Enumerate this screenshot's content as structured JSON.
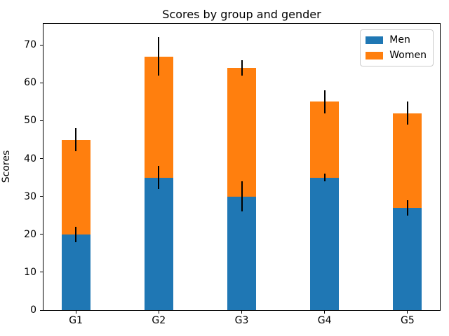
{
  "chart_data": {
    "type": "bar",
    "stacked": true,
    "title": "Scores by group and gender",
    "xlabel": "",
    "ylabel": "Scores",
    "categories": [
      "G1",
      "G2",
      "G3",
      "G4",
      "G5"
    ],
    "series": [
      {
        "name": "Men",
        "color": "#1f77b4",
        "values": [
          20,
          35,
          30,
          35,
          27
        ],
        "std": [
          2,
          3,
          4,
          1,
          2
        ]
      },
      {
        "name": "Women",
        "color": "#ff7f0e",
        "values": [
          25,
          32,
          34,
          20,
          25
        ],
        "std": [
          3,
          5,
          2,
          3,
          3
        ]
      }
    ],
    "stack_totals": [
      45,
      67,
      64,
      55,
      52
    ],
    "ylim": [
      0,
      75.6
    ],
    "yticks": [
      0,
      10,
      20,
      30,
      40,
      50,
      60,
      70
    ],
    "grid": false,
    "legend_position": "upper right",
    "errorbar_color": "#000000",
    "axes_edge_color": "#000000",
    "background_color": "#ffffff"
  }
}
